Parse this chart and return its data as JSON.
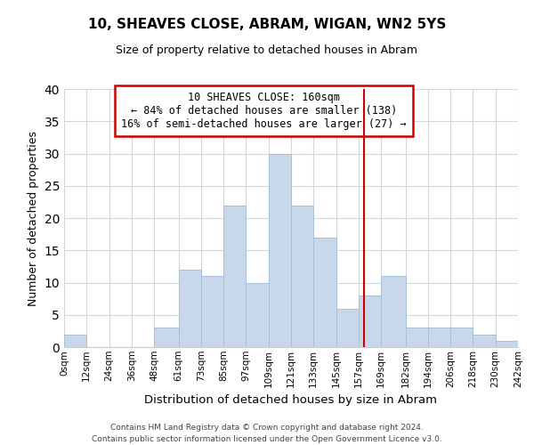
{
  "title": "10, SHEAVES CLOSE, ABRAM, WIGAN, WN2 5YS",
  "subtitle": "Size of property relative to detached houses in Abram",
  "xlabel": "Distribution of detached houses by size in Abram",
  "ylabel": "Number of detached properties",
  "bar_color": "#c8d8ea",
  "bar_edgecolor": "#a8c0d8",
  "bins": [
    0,
    12,
    24,
    36,
    48,
    61,
    73,
    85,
    97,
    109,
    121,
    133,
    145,
    157,
    169,
    182,
    194,
    206,
    218,
    230,
    242
  ],
  "values": [
    2,
    0,
    0,
    0,
    3,
    12,
    11,
    22,
    10,
    30,
    22,
    17,
    6,
    8,
    11,
    3,
    3,
    3,
    2,
    1
  ],
  "tick_labels": [
    "0sqm",
    "12sqm",
    "24sqm",
    "36sqm",
    "48sqm",
    "61sqm",
    "73sqm",
    "85sqm",
    "97sqm",
    "109sqm",
    "121sqm",
    "133sqm",
    "145sqm",
    "157sqm",
    "169sqm",
    "182sqm",
    "194sqm",
    "206sqm",
    "218sqm",
    "230sqm",
    "242sqm"
  ],
  "vline_x": 160,
  "vline_color": "#cc0000",
  "ylim": [
    0,
    40
  ],
  "yticks": [
    0,
    5,
    10,
    15,
    20,
    25,
    30,
    35,
    40
  ],
  "annotation_title": "10 SHEAVES CLOSE: 160sqm",
  "annotation_line1": "← 84% of detached houses are smaller (138)",
  "annotation_line2": "16% of semi-detached houses are larger (27) →",
  "annotation_box_edgecolor": "#cc0000",
  "footer1": "Contains HM Land Registry data © Crown copyright and database right 2024.",
  "footer2": "Contains public sector information licensed under the Open Government Licence v3.0."
}
